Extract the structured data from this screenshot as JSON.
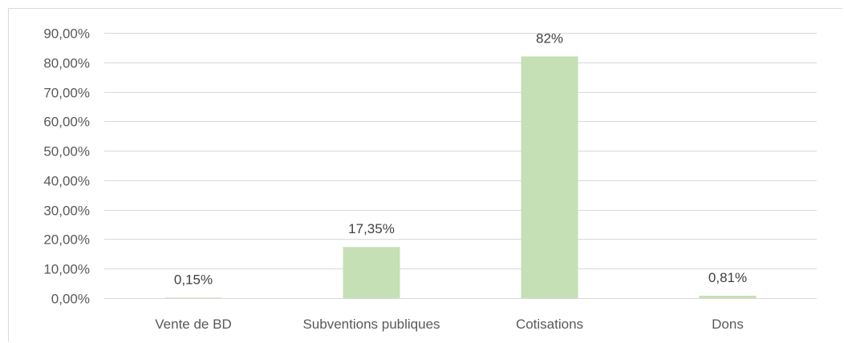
{
  "chart_data": {
    "type": "bar",
    "title": "",
    "xlabel": "",
    "ylabel": "",
    "categories": [
      "Vente de BD",
      "Subventions publiques",
      "Cotisations",
      "Dons"
    ],
    "values": [
      0.15,
      17.35,
      82,
      0.81
    ],
    "data_labels": [
      "0,15%",
      "17,35%",
      "82%",
      "0,81%"
    ],
    "ylim": [
      0,
      90
    ],
    "y_ticks": [
      0,
      10,
      20,
      30,
      40,
      50,
      60,
      70,
      80,
      90
    ],
    "y_tick_labels": [
      "0,00%",
      "10,00%",
      "20,00%",
      "30,00%",
      "40,00%",
      "50,00%",
      "60,00%",
      "70,00%",
      "80,00%",
      "90,00%"
    ],
    "grid": true,
    "legend": "none",
    "bar_color": "#c5e0b4"
  }
}
